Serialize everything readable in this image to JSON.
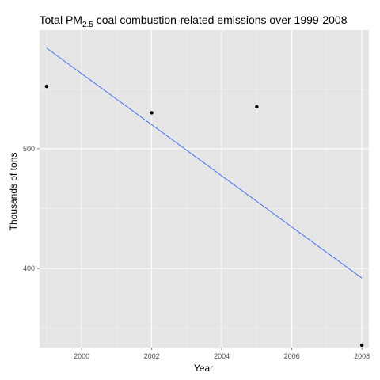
{
  "chart_data": {
    "type": "scatter",
    "title": "Total PM2.5 coal combustion-related emissions over 1999-2008",
    "title_parts": {
      "main": "Total PM",
      "subscript": "2.5",
      "rest": " coal combustion-related emissions over 1999-2008"
    },
    "xlabel": "Year",
    "ylabel": "Thousands of tons",
    "xlim": [
      1998.8,
      2008.2
    ],
    "ylim": [
      334,
      599
    ],
    "x_ticks": [
      2000,
      2002,
      2004,
      2006,
      2008
    ],
    "y_ticks": [
      400,
      500
    ],
    "x_tick_labels": [
      "2000",
      "2002",
      "2004",
      "2006",
      "2008"
    ],
    "y_tick_labels": [
      "400",
      "500"
    ],
    "x_minor_ticks": [
      1999,
      2001,
      2003,
      2005,
      2007
    ],
    "y_minor_ticks": [
      350,
      450,
      550
    ],
    "grid": true,
    "series": [
      {
        "type": "scatter",
        "x": [
          1999,
          2002,
          2005,
          2008
        ],
        "y": [
          552,
          530,
          535,
          336
        ],
        "color": "#000000"
      },
      {
        "type": "line",
        "x": [
          1999,
          2008
        ],
        "y": [
          584,
          392
        ],
        "color": "#3366ff"
      }
    ],
    "panel_background": "#e5e5e5",
    "grid_color": "#ffffff"
  }
}
